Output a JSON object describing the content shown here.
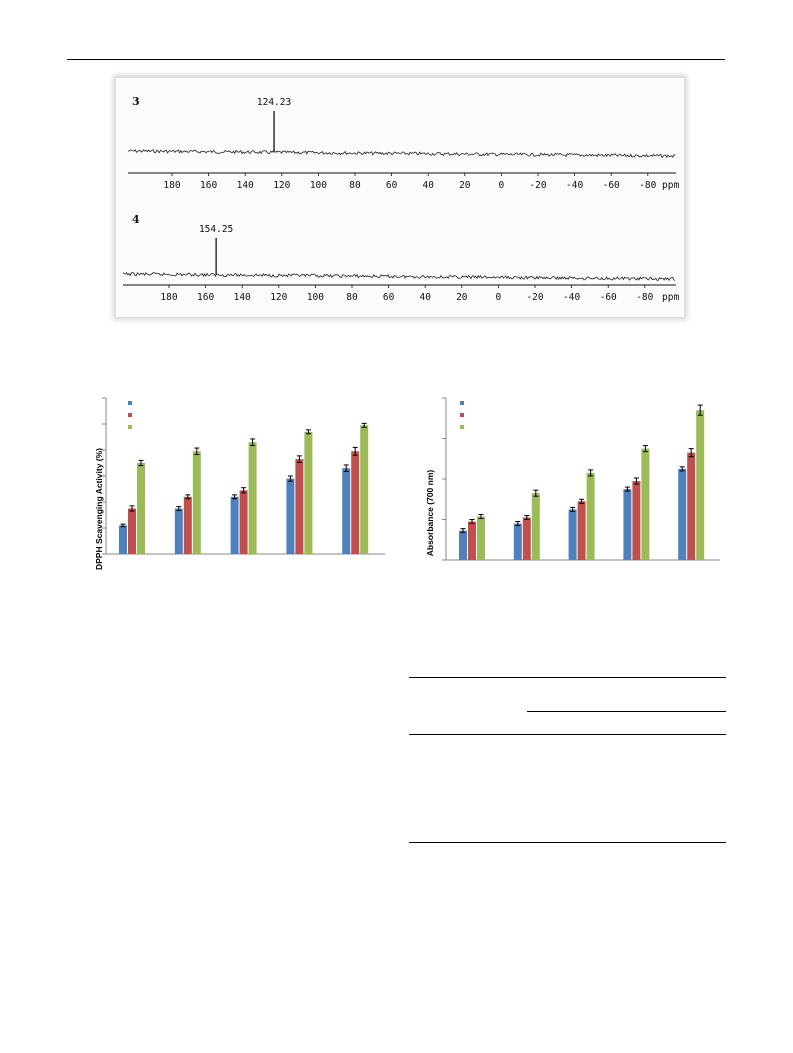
{
  "nmr_spectra": [
    {
      "id_label": "3",
      "peak_label": "124.23",
      "peak_ppm": 124.23,
      "ticks": [
        "180",
        "160",
        "140",
        "120",
        "100",
        "80",
        "60",
        "40",
        "20",
        "0",
        "-20",
        "-40",
        "-60",
        "-80"
      ],
      "axis_unit": "ppm"
    },
    {
      "id_label": "4",
      "peak_label": "154.25",
      "peak_ppm": 154.25,
      "ticks": [
        "180",
        "160",
        "140",
        "120",
        "100",
        "80",
        "60",
        "40",
        "20",
        "0",
        "-20",
        "-40",
        "-60",
        "-80"
      ],
      "axis_unit": "ppm"
    }
  ],
  "chart_data": [
    {
      "type": "bar",
      "ylabel": "DPPH Scavenging Activity (%)",
      "xlabel": "",
      "categories": [
        "",
        "",
        "",
        "",
        ""
      ],
      "ylim": [
        0,
        120
      ],
      "legend": "top-left",
      "series": [
        {
          "color": "#4f81bd",
          "values": [
            22,
            35,
            44,
            58,
            66
          ],
          "errors": [
            1.0,
            1.5,
            1.5,
            2.0,
            2.5
          ]
        },
        {
          "color": "#c0504d",
          "values": [
            35,
            44,
            49,
            73,
            79
          ],
          "errors": [
            2.0,
            1.5,
            2.0,
            2.5,
            3.0
          ]
        },
        {
          "color": "#9bbb59",
          "values": [
            70,
            79,
            86,
            94,
            99
          ],
          "errors": [
            2.0,
            2.5,
            2.5,
            1.5,
            1.5
          ]
        }
      ]
    },
    {
      "type": "bar",
      "ylabel": "Absorbance (700 nm)",
      "xlabel": "",
      "categories": [
        "",
        "",
        "",
        "",
        ""
      ],
      "ylim": [
        0,
        1.6
      ],
      "legend": "top-left",
      "series": [
        {
          "color": "#4f81bd",
          "values": [
            0.29,
            0.36,
            0.5,
            0.7,
            0.9
          ],
          "errors": [
            0.02,
            0.02,
            0.02,
            0.02,
            0.02
          ]
        },
        {
          "color": "#c0504d",
          "values": [
            0.38,
            0.42,
            0.58,
            0.78,
            1.06
          ],
          "errors": [
            0.02,
            0.02,
            0.02,
            0.03,
            0.04
          ]
        },
        {
          "color": "#9bbb59",
          "values": [
            0.43,
            0.66,
            0.86,
            1.1,
            1.48
          ],
          "errors": [
            0.02,
            0.03,
            0.03,
            0.03,
            0.05
          ]
        }
      ]
    }
  ]
}
